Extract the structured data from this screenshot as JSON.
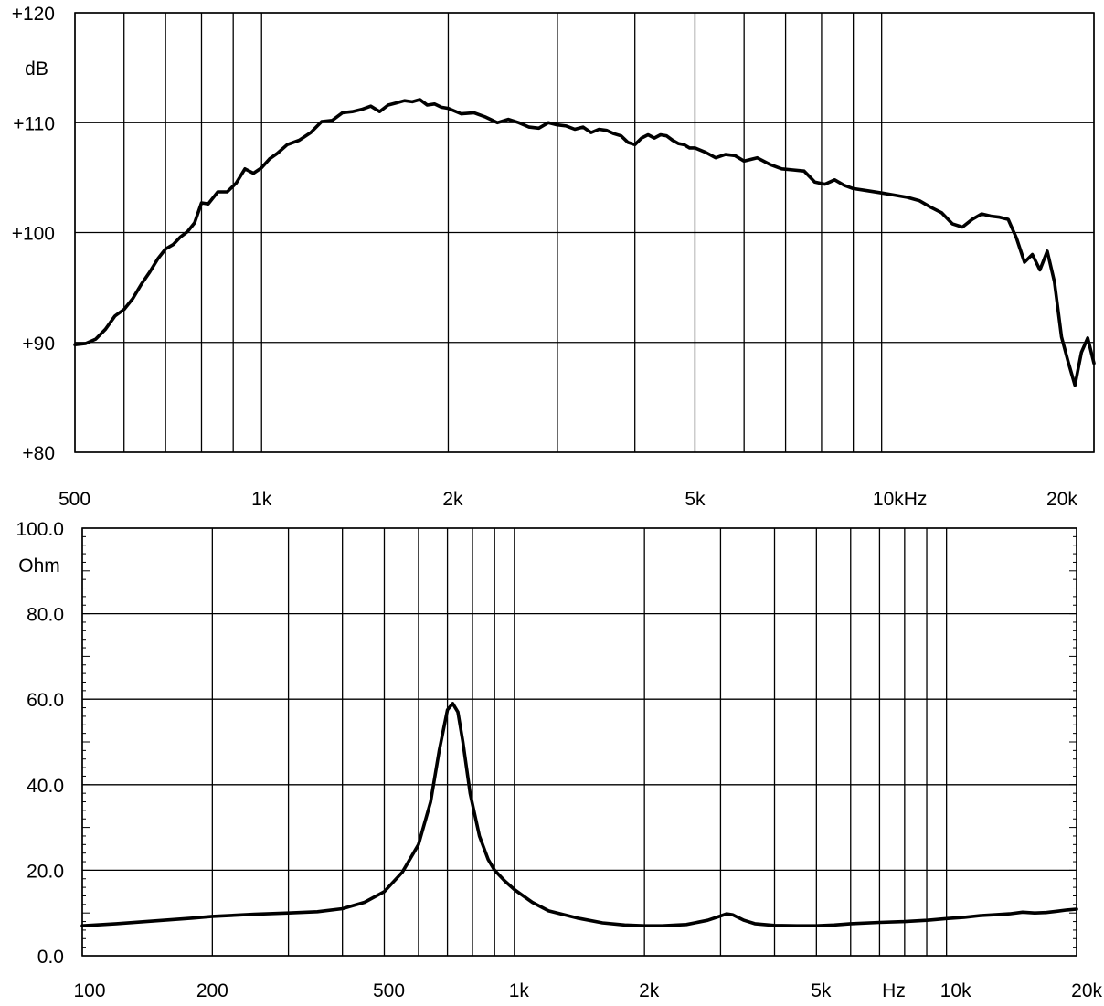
{
  "chart_data": [
    {
      "type": "line",
      "xscale": "log",
      "xlim": [
        500,
        22000
      ],
      "ylim": [
        80,
        120
      ],
      "ylabel": "dB",
      "grid": true,
      "ytick_values": [
        80,
        90,
        100,
        110,
        120
      ],
      "ytick_labels": [
        "+80",
        "+90",
        "+100",
        "+110",
        "+120"
      ],
      "xtick_values": [
        500,
        1000,
        2000,
        5000,
        10000,
        20000
      ],
      "xtick_labels": [
        "500",
        "1k",
        "2k",
        "5k",
        "10kHz",
        "20k"
      ],
      "vgrid": [
        500,
        600,
        700,
        800,
        900,
        1000,
        2000,
        3000,
        4000,
        5000,
        6000,
        7000,
        8000,
        9000,
        10000,
        22000
      ],
      "series": [
        {
          "x": [
            500,
            520,
            540,
            560,
            580,
            600,
            620,
            640,
            660,
            680,
            700,
            720,
            740,
            760,
            780,
            800,
            820,
            850,
            880,
            910,
            940,
            970,
            1000,
            1030,
            1060,
            1100,
            1150,
            1200,
            1250,
            1300,
            1350,
            1400,
            1450,
            1500,
            1550,
            1600,
            1650,
            1700,
            1750,
            1800,
            1850,
            1900,
            1950,
            2000,
            2100,
            2200,
            2300,
            2400,
            2500,
            2600,
            2700,
            2800,
            2900,
            3000,
            3100,
            3200,
            3300,
            3400,
            3500,
            3600,
            3700,
            3800,
            3900,
            4000,
            4100,
            4200,
            4300,
            4400,
            4500,
            4600,
            4700,
            4800,
            4900,
            5000,
            5200,
            5400,
            5600,
            5800,
            6000,
            6300,
            6600,
            6900,
            7200,
            7500,
            7800,
            8100,
            8400,
            8700,
            9000,
            9500,
            10000,
            10500,
            11000,
            11500,
            12000,
            12500,
            13000,
            13500,
            14000,
            14500,
            15000,
            15500,
            16000,
            16500,
            17000,
            17500,
            18000,
            18500,
            19000,
            19500,
            20000,
            20500,
            21000,
            21500,
            22000
          ],
          "y": [
            89.8,
            89.9,
            90.3,
            91.2,
            92.4,
            93.0,
            94.0,
            95.3,
            96.4,
            97.6,
            98.5,
            98.9,
            99.6,
            100.1,
            100.9,
            102.7,
            102.6,
            103.7,
            103.7,
            104.5,
            105.8,
            105.4,
            105.9,
            106.7,
            107.2,
            108.0,
            108.4,
            109.1,
            110.1,
            110.2,
            110.9,
            111.0,
            111.2,
            111.5,
            111.0,
            111.6,
            111.8,
            112.0,
            111.9,
            112.1,
            111.6,
            111.7,
            111.4,
            111.3,
            110.8,
            110.9,
            110.5,
            110.0,
            110.3,
            110.0,
            109.6,
            109.5,
            110.0,
            109.8,
            109.7,
            109.4,
            109.6,
            109.1,
            109.4,
            109.3,
            109.0,
            108.8,
            108.2,
            108.0,
            108.6,
            108.9,
            108.6,
            108.9,
            108.8,
            108.4,
            108.1,
            108.0,
            107.7,
            107.7,
            107.3,
            106.8,
            107.1,
            107.0,
            106.5,
            106.8,
            106.2,
            105.8,
            105.7,
            105.6,
            104.6,
            104.4,
            104.8,
            104.3,
            104.0,
            103.8,
            103.6,
            103.4,
            103.2,
            102.9,
            102.3,
            101.8,
            100.8,
            100.5,
            101.2,
            101.7,
            101.5,
            101.4,
            101.2,
            99.5,
            97.3,
            98.0,
            96.6,
            98.3,
            95.5,
            90.5,
            88.2,
            86.1,
            89.1,
            90.4,
            88.1
          ]
        }
      ]
    },
    {
      "type": "line",
      "xscale": "log",
      "xlim": [
        100,
        20000
      ],
      "ylim": [
        0,
        100
      ],
      "ylabel": "Ohm",
      "xlabel": "Hz",
      "grid": true,
      "ytick_values": [
        0,
        20,
        40,
        60,
        80,
        100
      ],
      "ytick_labels": [
        "0.0",
        "20.0",
        "40.0",
        "60.0",
        "80.0",
        "100.0"
      ],
      "xtick_values": [
        100,
        200,
        500,
        1000,
        2000,
        5000,
        10000,
        20000
      ],
      "xtick_labels": [
        "100",
        "200",
        "500",
        "1k",
        "2k",
        "5k",
        "10k",
        "20k"
      ],
      "vgrid": [
        100,
        200,
        300,
        400,
        500,
        600,
        700,
        800,
        900,
        1000,
        2000,
        3000,
        4000,
        5000,
        6000,
        7000,
        8000,
        9000,
        10000,
        20000
      ],
      "series": [
        {
          "x": [
            100,
            120,
            150,
            180,
            200,
            250,
            300,
            350,
            400,
            450,
            500,
            550,
            600,
            640,
            670,
            700,
            720,
            740,
            760,
            790,
            830,
            870,
            900,
            950,
            1000,
            1100,
            1200,
            1400,
            1600,
            1800,
            2000,
            2200,
            2500,
            2800,
            3000,
            3100,
            3200,
            3300,
            3400,
            3600,
            4000,
            4500,
            5000,
            5500,
            6000,
            7000,
            8000,
            9000,
            10000,
            11000,
            12000,
            13000,
            14000,
            15000,
            16000,
            17000,
            18000,
            19000,
            20000
          ],
          "y": [
            7.0,
            7.5,
            8.2,
            8.8,
            9.2,
            9.7,
            10.0,
            10.3,
            11.0,
            12.5,
            15.0,
            19.5,
            26.0,
            36.0,
            48.0,
            57.5,
            59.0,
            57.0,
            50.0,
            38.0,
            28.0,
            22.5,
            20.0,
            17.5,
            15.5,
            12.5,
            10.5,
            8.8,
            7.7,
            7.2,
            7.0,
            7.0,
            7.3,
            8.3,
            9.3,
            9.8,
            9.6,
            8.9,
            8.3,
            7.5,
            7.1,
            7.0,
            7.0,
            7.2,
            7.5,
            7.8,
            8.0,
            8.3,
            8.7,
            9.0,
            9.4,
            9.6,
            9.8,
            10.2,
            10.0,
            10.1,
            10.4,
            10.7,
            10.9
          ]
        }
      ]
    }
  ]
}
